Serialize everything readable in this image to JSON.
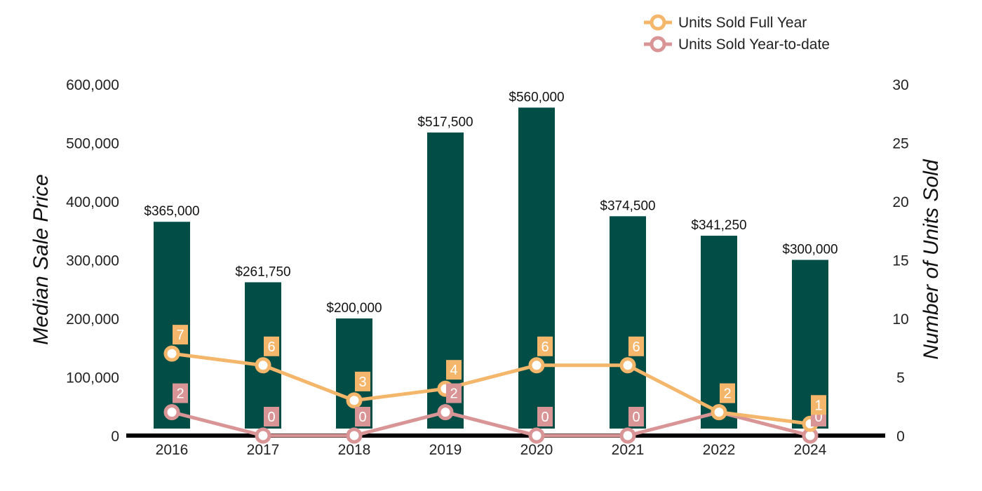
{
  "chart_data": {
    "type": "bar",
    "categories": [
      "2016",
      "2017",
      "2018",
      "2019",
      "2020",
      "2021",
      "2022",
      "2024"
    ],
    "bar_series": {
      "name": "Median Sale Price",
      "values": [
        365000,
        261750,
        200000,
        517500,
        560000,
        374500,
        341250,
        300000
      ],
      "value_labels": [
        "$365,000",
        "$261,750",
        "$200,000",
        "$517,500",
        "$560,000",
        "$374,500",
        "$341,250",
        "$300,000"
      ],
      "color": "#024d45"
    },
    "line_series": [
      {
        "name": "Units Sold Full Year",
        "values": [
          7,
          6,
          3,
          4,
          6,
          6,
          2,
          1
        ],
        "value_labels": [
          "7",
          "6",
          "3",
          "4",
          "6",
          "6",
          "2",
          "1"
        ],
        "color": "#f4b66a"
      },
      {
        "name": "Units Sold Year-to-date",
        "values": [
          2,
          0,
          0,
          2,
          0,
          0,
          2,
          0
        ],
        "value_labels": [
          "2",
          "0",
          "0",
          "2",
          "0",
          "0",
          "2",
          "0"
        ],
        "color": "#d99595"
      }
    ],
    "ylabel": "Median Sale Price",
    "y2label": "Number of Units Sold",
    "ylim": [
      0,
      600000
    ],
    "y2lim": [
      0,
      30
    ],
    "yticks": [
      0,
      100000,
      200000,
      300000,
      400000,
      500000,
      600000
    ],
    "ytick_labels": [
      "0",
      "100,000",
      "200,000",
      "300,000",
      "400,000",
      "500,000",
      "600,000"
    ],
    "y2ticks": [
      0,
      5,
      10,
      15,
      20,
      25,
      30
    ],
    "y2tick_labels": [
      "0",
      "5",
      "10",
      "15",
      "20",
      "25",
      "30"
    ],
    "legend_position": "top-right",
    "axis_color": "#000000",
    "grid": false
  }
}
